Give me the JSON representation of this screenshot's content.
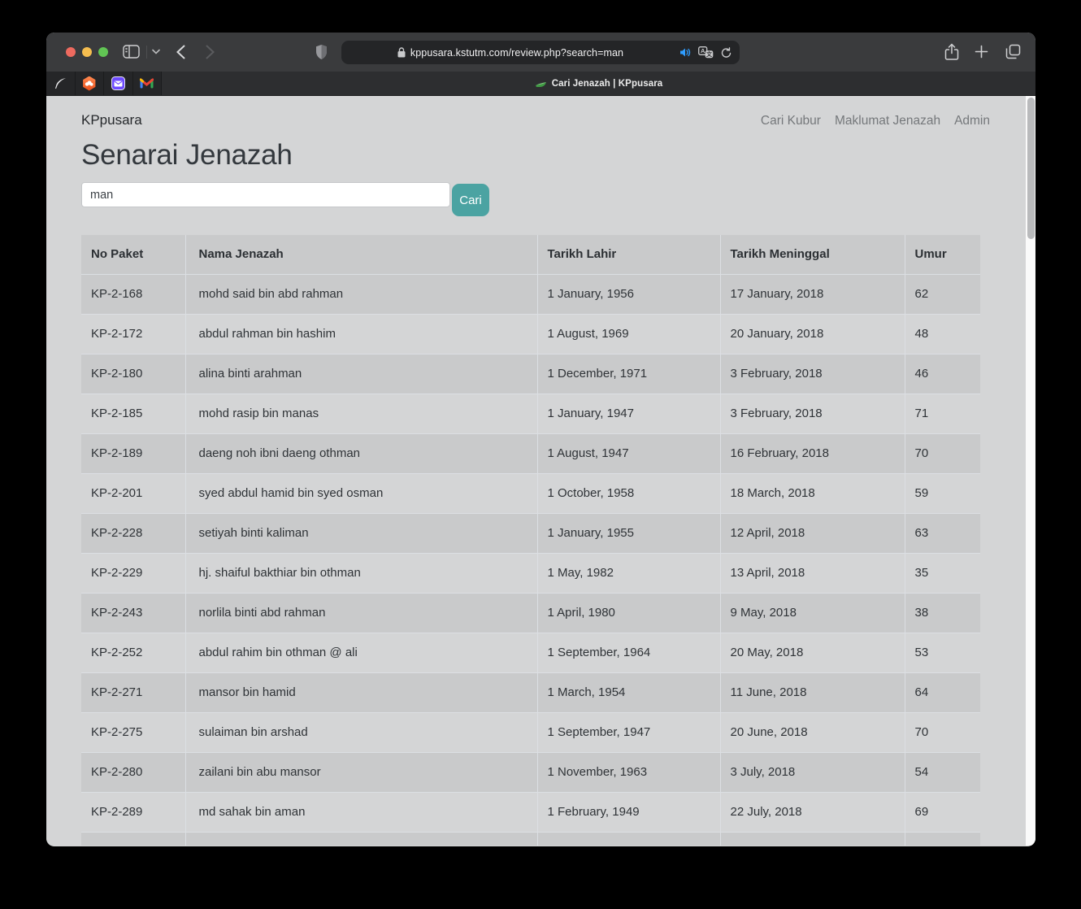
{
  "browser": {
    "url": "kppusara.kstutm.com/review.php?search=man",
    "tab_title": "Cari Jenazah | KPpusara",
    "pinned_tab_icons": [
      "quill-icon",
      "hexagon-app-icon",
      "mail-app-icon",
      "gmail-icon"
    ],
    "new_tab_label": "+"
  },
  "page": {
    "brand": "KPpusara",
    "nav": [
      "Cari Kubur",
      "Maklumat Jenazah",
      "Admin"
    ],
    "title": "Senarai Jenazah",
    "search": {
      "value": "man",
      "button": "Cari"
    }
  },
  "table": {
    "columns": [
      "No Paket",
      "Nama Jenazah",
      "Tarikh Lahir",
      "Tarikh Meninggal",
      "Umur"
    ],
    "rows": [
      [
        "KP-2-168",
        "mohd said bin abd rahman",
        "1 January, 1956",
        "17 January, 2018",
        "62"
      ],
      [
        "KP-2-172",
        "abdul rahman bin hashim",
        "1 August, 1969",
        "20 January, 2018",
        "48"
      ],
      [
        "KP-2-180",
        "alina binti arahman",
        "1 December, 1971",
        "3 February, 2018",
        "46"
      ],
      [
        "KP-2-185",
        "mohd rasip bin manas",
        "1 January, 1947",
        "3 February, 2018",
        "71"
      ],
      [
        "KP-2-189",
        "daeng noh ibni daeng othman",
        "1 August, 1947",
        "16 February, 2018",
        "70"
      ],
      [
        "KP-2-201",
        "syed abdul hamid bin syed osman",
        "1 October, 1958",
        "18 March, 2018",
        "59"
      ],
      [
        "KP-2-228",
        "setiyah binti kaliman",
        "1 January, 1955",
        "12 April, 2018",
        "63"
      ],
      [
        "KP-2-229",
        "hj. shaiful bakthiar bin othman",
        "1 May, 1982",
        "13 April, 2018",
        "35"
      ],
      [
        "KP-2-243",
        "norlila binti abd rahman",
        "1 April, 1980",
        "9 May, 2018",
        "38"
      ],
      [
        "KP-2-252",
        "abdul rahim bin othman @ ali",
        "1 September, 1964",
        "20 May, 2018",
        "53"
      ],
      [
        "KP-2-271",
        "mansor bin hamid",
        "1 March, 1954",
        "11 June, 2018",
        "64"
      ],
      [
        "KP-2-275",
        "sulaiman bin arshad",
        "1 September, 1947",
        "20 June, 2018",
        "70"
      ],
      [
        "KP-2-280",
        "zailani bin abu mansor",
        "1 November, 1963",
        "3 July, 2018",
        "54"
      ],
      [
        "KP-2-289",
        "md sahak bin aman",
        "1 February, 1949",
        "22 July, 2018",
        "69"
      ]
    ]
  },
  "colors": {
    "accent_teal": "#4ba3a2",
    "page_bg": "#d4d5d6",
    "row_dark": "#c9cacb",
    "row_light": "#d4d5d6",
    "nav_gray": "#75787b",
    "speaker_blue": "#2f9dff",
    "toolbar": "#3a3b3d"
  }
}
